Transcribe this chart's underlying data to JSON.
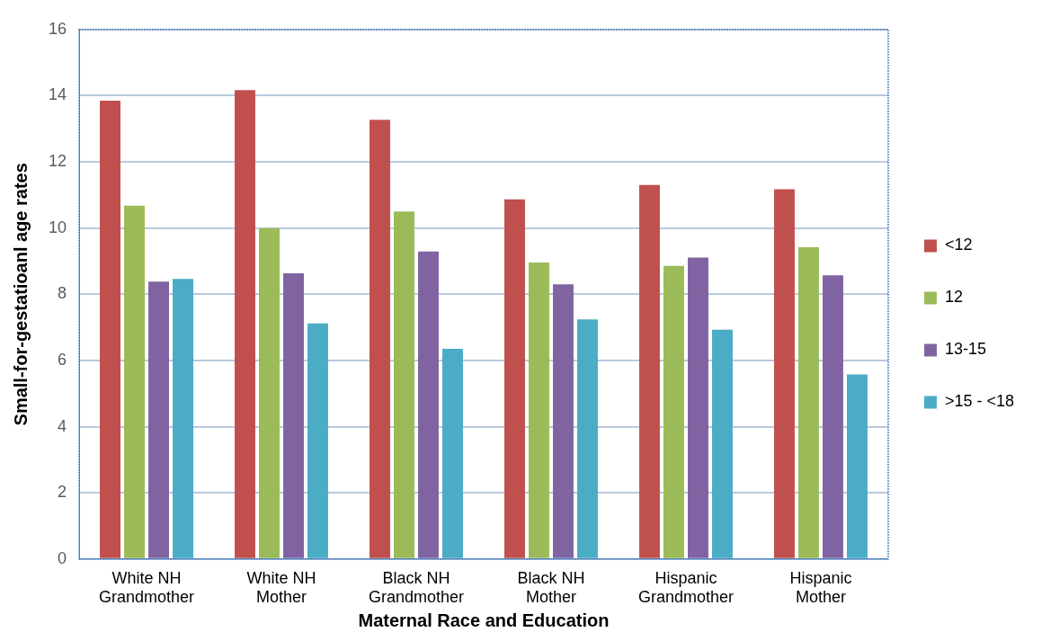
{
  "chart_data": {
    "type": "bar",
    "xlabel": "Maternal Race and Education",
    "ylabel": "Small-for-gestatioanl age rates",
    "categories": [
      "White NH Grandmother",
      "White NH Mother",
      "Black NH Grandmother",
      "Black NH Mother",
      "Hispanic Grandmother",
      "Hispanic Mother"
    ],
    "series": [
      {
        "name": "<12",
        "color": "#c0504d",
        "values": [
          13.85,
          14.17,
          13.27,
          10.87,
          11.3,
          11.17
        ]
      },
      {
        "name": "12",
        "color": "#9bbb59",
        "values": [
          10.68,
          10.0,
          10.5,
          8.96,
          8.86,
          9.42
        ]
      },
      {
        "name": "13-15",
        "color": "#8064a2",
        "values": [
          8.38,
          8.63,
          9.29,
          8.3,
          9.11,
          8.57
        ]
      },
      {
        "name": ">15 - <18",
        "color": "#4bacc6",
        "values": [
          8.46,
          7.12,
          6.35,
          7.24,
          6.93,
          5.58
        ]
      }
    ],
    "ylim": [
      0,
      16
    ],
    "yticks": [
      0,
      2,
      4,
      6,
      8,
      10,
      12,
      14,
      16
    ],
    "grid": "y",
    "legend": "right"
  }
}
